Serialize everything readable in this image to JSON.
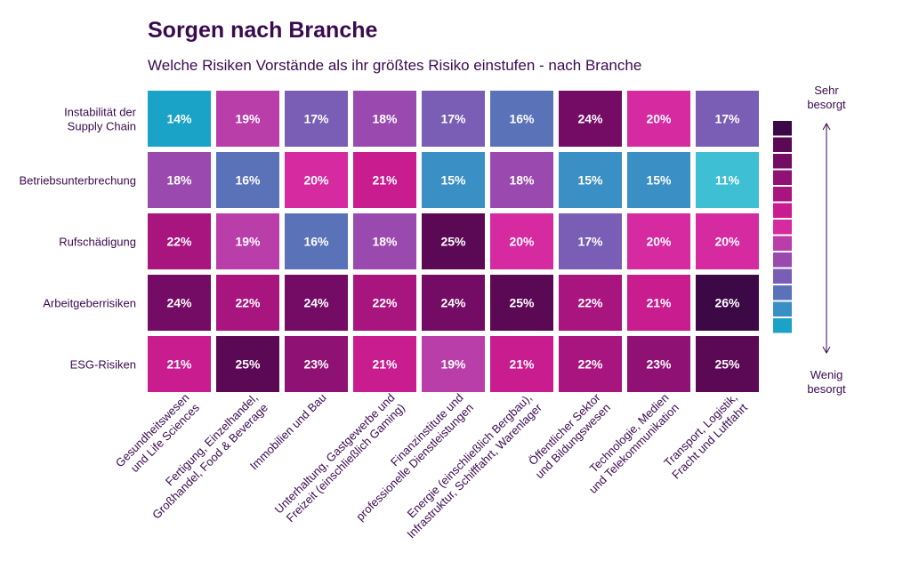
{
  "chart_data": {
    "type": "heatmap",
    "title": "Sorgen nach Branche",
    "subtitle": "Welche Risiken Vorstände als ihr größtes Risiko einstufen - nach Branche",
    "rows": [
      [
        "Instabilität der",
        "Supply Chain"
      ],
      [
        "Betriebsunterbrechung"
      ],
      [
        "Rufschädigung"
      ],
      [
        "Arbeitgeberrisiken"
      ],
      [
        "ESG-Risiken"
      ]
    ],
    "columns": [
      [
        "Gesundheitswesen",
        "und Life Sciences"
      ],
      [
        "Fertigung, Einzelhandel,",
        "Großhandel, Food & Beverage"
      ],
      [
        "Immobilien und Bau"
      ],
      [
        "Unterhaltung, Gastgewerbe und",
        "Freizeit (einschließlich Gaming)"
      ],
      [
        "Finanzinstitute und",
        "professionelle Dienstleistungen"
      ],
      [
        "Energie (einschließlich Bergbau),",
        "Infrastruktur, Schifffahrt, Warenlager"
      ],
      [
        "Öffentlicher Sektor",
        "und Bildungswesen"
      ],
      [
        "Technologie, Medien",
        "und Telekommunikation"
      ],
      [
        "Transport, Logistik,",
        "Fracht und Luftfahrt"
      ]
    ],
    "values": [
      [
        14,
        19,
        17,
        18,
        17,
        16,
        24,
        20,
        17
      ],
      [
        18,
        16,
        20,
        21,
        15,
        18,
        15,
        15,
        11
      ],
      [
        22,
        19,
        16,
        18,
        25,
        20,
        17,
        20,
        20
      ],
      [
        24,
        22,
        24,
        22,
        24,
        25,
        22,
        21,
        26
      ],
      [
        21,
        25,
        23,
        21,
        19,
        21,
        22,
        23,
        25
      ]
    ],
    "value_suffix": "%",
    "legend": {
      "top_label": [
        "Sehr",
        "besorgt"
      ],
      "bottom_label": [
        "Wenig",
        "besorgt"
      ],
      "placement": "right"
    },
    "colors": {
      "11": "#3ebfd3",
      "14": "#1aa3c6",
      "15": "#3a8fc4",
      "16": "#5a72b8",
      "17": "#7a5db4",
      "18": "#9a4aae",
      "19": "#b93eaa",
      "20": "#d62aa0",
      "21": "#c81c8f",
      "22": "#a8157f",
      "23": "#8e1173",
      "24": "#740c66",
      "25": "#5b0955",
      "26": "#3d0846"
    },
    "legend_colors": [
      "#3d0846",
      "#5b0955",
      "#740c66",
      "#8e1173",
      "#a8157f",
      "#c81c8f",
      "#d62aa0",
      "#b93eaa",
      "#9a4aae",
      "#7a5db4",
      "#5a72b8",
      "#3a8fc4",
      "#1aa3c6"
    ]
  }
}
